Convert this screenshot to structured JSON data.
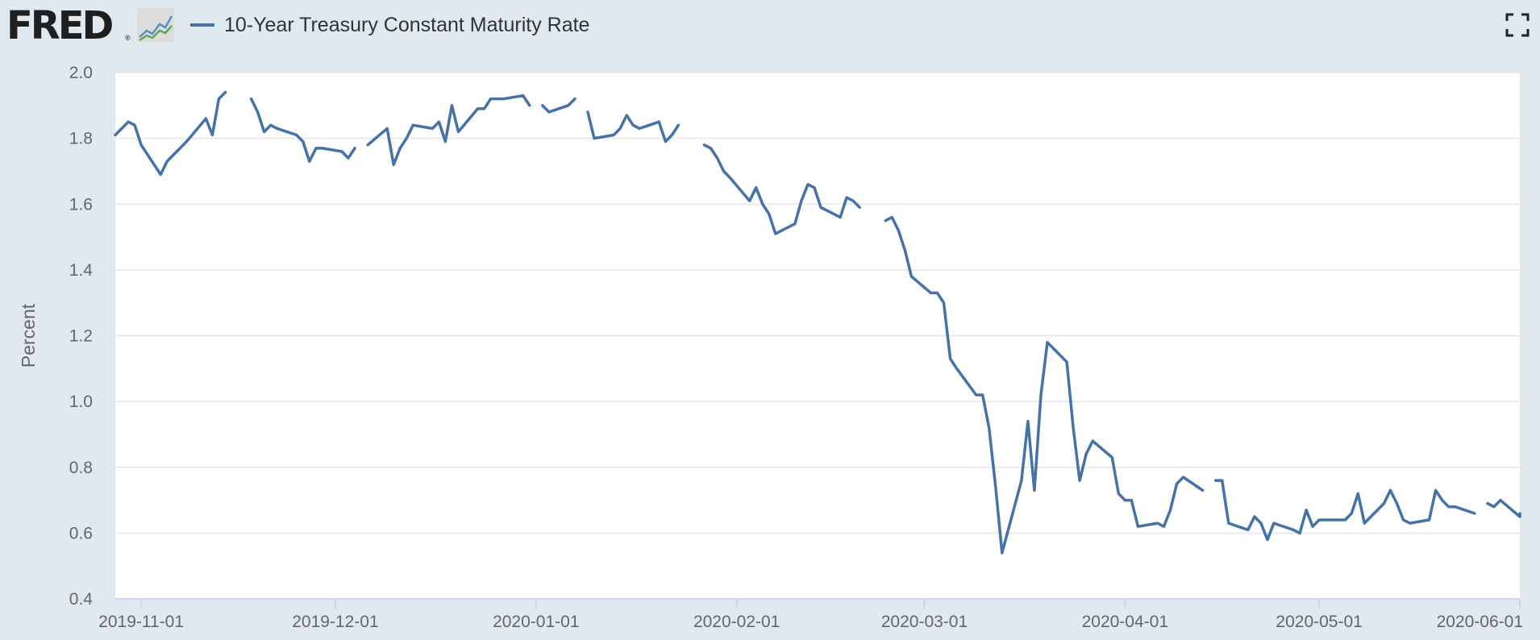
{
  "header": {
    "logo_text": "FRED",
    "logo_reg": "®",
    "legend_label": "10-Year Treasury Constant Maturity Rate",
    "fullscreen_icon": "fullscreen-icon"
  },
  "colors": {
    "series": "#4572a7",
    "background": "#e1e9f0",
    "plot": "#ffffff",
    "grid": "#e6e6e6"
  },
  "chart_data": {
    "type": "line",
    "title": "",
    "xlabel": "",
    "ylabel": "Percent",
    "ylim": [
      0.4,
      2.0
    ],
    "yticks": [
      "0.4",
      "0.6",
      "0.8",
      "1.0",
      "1.2",
      "1.4",
      "1.6",
      "1.8",
      "2.0"
    ],
    "xlim": [
      "2019-10-28",
      "2020-06-01"
    ],
    "xticks": [
      "2019-11-01",
      "2019-12-01",
      "2020-01-01",
      "2020-02-01",
      "2020-03-01",
      "2020-04-01",
      "2020-05-01",
      "2020-06-01"
    ],
    "grid": true,
    "series": [
      {
        "name": "10-Year Treasury Constant Maturity Rate",
        "color": "#4572a7",
        "points": [
          [
            "2019-10-28",
            1.81
          ],
          [
            "2019-10-29",
            1.83
          ],
          [
            "2019-10-30",
            1.85
          ],
          [
            "2019-10-31",
            1.84
          ],
          [
            "2019-11-01",
            1.78
          ],
          [
            "2019-11-04",
            1.69
          ],
          [
            "2019-11-05",
            1.73
          ],
          [
            "2019-11-06",
            1.75
          ],
          [
            "2019-11-07",
            1.77
          ],
          [
            "2019-11-08",
            1.79
          ],
          [
            "2019-11-11",
            1.86
          ],
          [
            "2019-11-12",
            1.81
          ],
          [
            "2019-11-13",
            1.92
          ],
          [
            "2019-11-14",
            1.94
          ],
          [
            "2019-11-15",
            null
          ],
          [
            "2019-11-18",
            1.92
          ],
          [
            "2019-11-19",
            1.88
          ],
          [
            "2019-11-20",
            1.82
          ],
          [
            "2019-11-21",
            1.84
          ],
          [
            "2019-11-22",
            1.83
          ],
          [
            "2019-11-25",
            1.81
          ],
          [
            "2019-11-26",
            1.79
          ],
          [
            "2019-11-27",
            1.73
          ],
          [
            "2019-11-28",
            1.77
          ],
          [
            "2019-11-29",
            1.77
          ],
          [
            "2019-12-02",
            1.76
          ],
          [
            "2019-12-03",
            1.74
          ],
          [
            "2019-12-04",
            1.77
          ],
          [
            "2019-12-05",
            null
          ],
          [
            "2019-12-06",
            1.78
          ],
          [
            "2019-12-09",
            1.83
          ],
          [
            "2019-12-10",
            1.72
          ],
          [
            "2019-12-11",
            1.77
          ],
          [
            "2019-12-12",
            1.8
          ],
          [
            "2019-12-13",
            1.84
          ],
          [
            "2019-12-16",
            1.83
          ],
          [
            "2019-12-17",
            1.85
          ],
          [
            "2019-12-18",
            1.79
          ],
          [
            "2019-12-19",
            1.9
          ],
          [
            "2019-12-20",
            1.82
          ],
          [
            "2019-12-23",
            1.89
          ],
          [
            "2019-12-24",
            1.89
          ],
          [
            "2019-12-25",
            1.92
          ],
          [
            "2019-12-26",
            1.92
          ],
          [
            "2019-12-27",
            1.92
          ],
          [
            "2019-12-30",
            1.93
          ],
          [
            "2019-12-31",
            1.9
          ],
          [
            "2020-01-01",
            null
          ],
          [
            "2020-01-02",
            1.9
          ],
          [
            "2020-01-03",
            1.88
          ],
          [
            "2020-01-06",
            1.9
          ],
          [
            "2020-01-07",
            1.92
          ],
          [
            "2020-01-08",
            null
          ],
          [
            "2020-01-09",
            1.88
          ],
          [
            "2020-01-10",
            1.8
          ],
          [
            "2020-01-13",
            1.81
          ],
          [
            "2020-01-14",
            1.83
          ],
          [
            "2020-01-15",
            1.87
          ],
          [
            "2020-01-16",
            1.84
          ],
          [
            "2020-01-17",
            1.83
          ],
          [
            "2020-01-20",
            1.85
          ],
          [
            "2020-01-21",
            1.79
          ],
          [
            "2020-01-22",
            1.81
          ],
          [
            "2020-01-23",
            1.84
          ],
          [
            "2020-01-24",
            null
          ],
          [
            "2020-01-27",
            1.78
          ],
          [
            "2020-01-28",
            1.77
          ],
          [
            "2020-01-29",
            1.74
          ],
          [
            "2020-01-30",
            1.7
          ],
          [
            "2020-01-31",
            1.68
          ],
          [
            "2020-02-03",
            1.61
          ],
          [
            "2020-02-04",
            1.65
          ],
          [
            "2020-02-05",
            1.6
          ],
          [
            "2020-02-06",
            1.57
          ],
          [
            "2020-02-07",
            1.51
          ],
          [
            "2020-02-10",
            1.54
          ],
          [
            "2020-02-11",
            1.61
          ],
          [
            "2020-02-12",
            1.66
          ],
          [
            "2020-02-13",
            1.65
          ],
          [
            "2020-02-14",
            1.59
          ],
          [
            "2020-02-17",
            1.56
          ],
          [
            "2020-02-18",
            1.62
          ],
          [
            "2020-02-19",
            1.61
          ],
          [
            "2020-02-20",
            1.59
          ],
          [
            "2020-02-21",
            null
          ],
          [
            "2020-02-24",
            1.55
          ],
          [
            "2020-02-25",
            1.56
          ],
          [
            "2020-02-26",
            1.52
          ],
          [
            "2020-02-27",
            1.46
          ],
          [
            "2020-02-28",
            1.38
          ],
          [
            "2020-03-02",
            1.33
          ],
          [
            "2020-03-03",
            1.33
          ],
          [
            "2020-03-04",
            1.3
          ],
          [
            "2020-03-05",
            1.13
          ],
          [
            "2020-03-06",
            1.1
          ],
          [
            "2020-03-09",
            1.02
          ],
          [
            "2020-03-10",
            1.02
          ],
          [
            "2020-03-11",
            0.92
          ],
          [
            "2020-03-12",
            0.74
          ],
          [
            "2020-03-13",
            0.54
          ],
          [
            "2020-03-16",
            0.76
          ],
          [
            "2020-03-17",
            0.94
          ],
          [
            "2020-03-18",
            0.73
          ],
          [
            "2020-03-19",
            1.02
          ],
          [
            "2020-03-20",
            1.18
          ],
          [
            "2020-03-23",
            1.12
          ],
          [
            "2020-03-24",
            0.92
          ],
          [
            "2020-03-25",
            0.76
          ],
          [
            "2020-03-26",
            0.84
          ],
          [
            "2020-03-27",
            0.88
          ],
          [
            "2020-03-30",
            0.83
          ],
          [
            "2020-03-31",
            0.72
          ],
          [
            "2020-04-01",
            0.7
          ],
          [
            "2020-04-02",
            0.7
          ],
          [
            "2020-04-03",
            0.62
          ],
          [
            "2020-04-06",
            0.63
          ],
          [
            "2020-04-07",
            0.62
          ],
          [
            "2020-04-08",
            0.67
          ],
          [
            "2020-04-09",
            0.75
          ],
          [
            "2020-04-10",
            0.77
          ],
          [
            "2020-04-13",
            0.73
          ],
          [
            "2020-04-14",
            null
          ],
          [
            "2020-04-15",
            0.76
          ],
          [
            "2020-04-16",
            0.76
          ],
          [
            "2020-04-17",
            0.63
          ],
          [
            "2020-04-20",
            0.61
          ],
          [
            "2020-04-21",
            0.65
          ],
          [
            "2020-04-22",
            0.63
          ],
          [
            "2020-04-23",
            0.58
          ],
          [
            "2020-04-24",
            0.63
          ],
          [
            "2020-04-27",
            0.61
          ],
          [
            "2020-04-28",
            0.6
          ],
          [
            "2020-04-29",
            0.67
          ],
          [
            "2020-04-30",
            0.62
          ],
          [
            "2020-05-01",
            0.64
          ],
          [
            "2020-05-04",
            0.64
          ],
          [
            "2020-05-05",
            0.64
          ],
          [
            "2020-05-06",
            0.66
          ],
          [
            "2020-05-07",
            0.72
          ],
          [
            "2020-05-08",
            0.63
          ],
          [
            "2020-05-11",
            0.69
          ],
          [
            "2020-05-12",
            0.73
          ],
          [
            "2020-05-13",
            0.69
          ],
          [
            "2020-05-14",
            0.64
          ],
          [
            "2020-05-15",
            0.63
          ],
          [
            "2020-05-18",
            0.64
          ],
          [
            "2020-05-19",
            0.73
          ],
          [
            "2020-05-20",
            0.7
          ],
          [
            "2020-05-21",
            0.68
          ],
          [
            "2020-05-22",
            0.68
          ],
          [
            "2020-05-25",
            0.66
          ],
          [
            "2020-05-26",
            null
          ],
          [
            "2020-05-27",
            0.69
          ],
          [
            "2020-05-28",
            0.68
          ],
          [
            "2020-05-29",
            0.7
          ],
          [
            "2020-06-01",
            0.65
          ],
          [
            "2020-06-02",
            0.66
          ]
        ]
      }
    ]
  }
}
